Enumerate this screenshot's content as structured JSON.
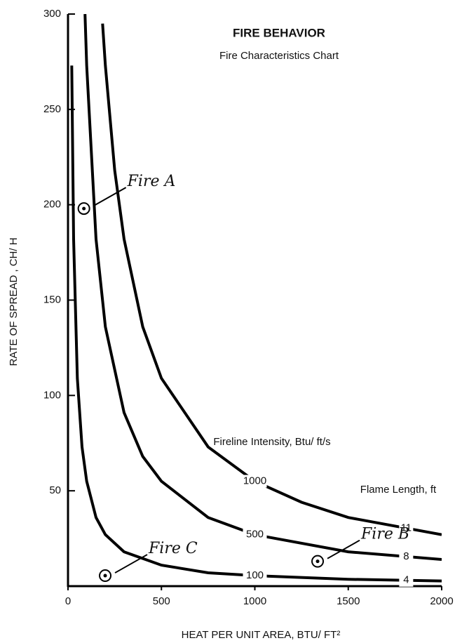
{
  "chart_data": {
    "type": "line",
    "title": "FIRE BEHAVIOR",
    "subtitle": "Fire Characteristics Chart",
    "x_label": "HEAT PER UNIT AREA, BTU/ FT²",
    "y_label": "RATE OF SPREAD , CH/ H",
    "intensity_label": "Fireline Intensity, Btu/ ft/s",
    "flame_length_label": "Flame Length, ft",
    "xlim": [
      0,
      2000
    ],
    "ylim": [
      0,
      300
    ],
    "xticks": [
      0,
      500,
      1000,
      1500,
      2000
    ],
    "yticks": [
      50,
      100,
      150,
      200,
      250,
      300
    ],
    "color": "#000000",
    "series": [
      {
        "name": "100",
        "flame_length": "4",
        "x": [
          20,
          30,
          50,
          75,
          100,
          150,
          200,
          300,
          500,
          750,
          1000,
          1500,
          2000
        ],
        "values": [
          273,
          182,
          109,
          73,
          55,
          36,
          27,
          18,
          11,
          7,
          5.5,
          3.6,
          2.7
        ]
      },
      {
        "name": "500",
        "flame_length": "8",
        "x": [
          91,
          100,
          150,
          200,
          300,
          400,
          500,
          750,
          1000,
          1500,
          2000
        ],
        "values": [
          300,
          273,
          182,
          136,
          91,
          68,
          55,
          36,
          27,
          18,
          14
        ]
      },
      {
        "name": "1000",
        "flame_length": "11",
        "x": [
          185,
          200,
          250,
          300,
          400,
          500,
          750,
          1000,
          1250,
          1500,
          2000
        ],
        "values": [
          295,
          273,
          218,
          182,
          136,
          109,
          73,
          55,
          44,
          36,
          27
        ]
      }
    ],
    "fires": [
      {
        "label": "Fire A",
        "x": 85,
        "y": 198
      },
      {
        "label": "Fire B",
        "x": 1336,
        "y": 13
      },
      {
        "label": "Fire C",
        "x": 199,
        "y": 5.5
      }
    ]
  }
}
